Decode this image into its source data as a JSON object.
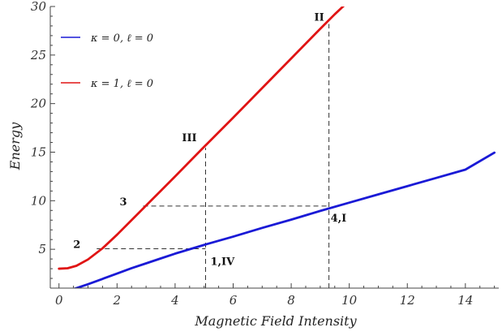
{
  "chart_data": {
    "type": "line",
    "xlabel": "Magnetic Field Intensity",
    "ylabel": "Energy",
    "xlim": [
      -0.3,
      15.15
    ],
    "ylim": [
      1,
      30
    ],
    "xticks": [
      "0",
      "2",
      "4",
      "6",
      "8",
      "10",
      "12",
      "14"
    ],
    "yticks": [
      "5",
      "10",
      "15",
      "20",
      "25",
      "30"
    ],
    "grid": false,
    "legend_position": "top-left",
    "series": [
      {
        "name": "κ = 0, ℓ = 0",
        "color": "#1a1ad6",
        "x": [
          0,
          0.5,
          1,
          1.5,
          2,
          2.5,
          3,
          3.5,
          4,
          5,
          6,
          7,
          8,
          9,
          10,
          11,
          12,
          13,
          14,
          15
        ],
        "y": [
          0.55,
          0.9,
          1.4,
          1.95,
          2.5,
          3.05,
          3.55,
          4.05,
          4.55,
          5.45,
          6.3,
          7.2,
          8.05,
          8.95,
          9.8,
          10.65,
          11.5,
          12.35,
          13.2,
          14.95
        ]
      },
      {
        "name": "κ = 1, ℓ = 0",
        "color": "#e01414",
        "x": [
          0,
          0.3,
          0.6,
          1,
          1.5,
          2,
          2.5,
          3,
          3.5,
          4,
          5,
          6,
          7,
          8,
          9,
          9.5,
          10
        ],
        "y": [
          3.0,
          3.05,
          3.3,
          3.95,
          5.1,
          6.5,
          8.0,
          9.5,
          11.0,
          12.5,
          15.55,
          18.55,
          21.6,
          24.65,
          27.7,
          29.2,
          30.6
        ]
      }
    ],
    "guides": [
      {
        "x": [
          5.05,
          5.05
        ],
        "y": [
          1,
          15.45
        ]
      },
      {
        "x": [
          9.3,
          9.3
        ],
        "y": [
          1,
          28.2
        ]
      },
      {
        "x": [
          1.3,
          5.05
        ],
        "y": [
          5.05,
          5.05
        ]
      },
      {
        "x": [
          2.9,
          9.3
        ],
        "y": [
          9.45,
          9.45
        ]
      }
    ],
    "annotations": [
      {
        "text": "1,IV",
        "x": 5.05,
        "y": 5.05
      },
      {
        "text": "2",
        "x": 1.3,
        "y": 5.05
      },
      {
        "text": "3",
        "x": 2.9,
        "y": 9.45
      },
      {
        "text": "4,I",
        "x": 9.3,
        "y": 9.45
      },
      {
        "text": "III",
        "x": 5.05,
        "y": 15.45
      },
      {
        "text": "II",
        "x": 9.3,
        "y": 28.2
      }
    ]
  }
}
